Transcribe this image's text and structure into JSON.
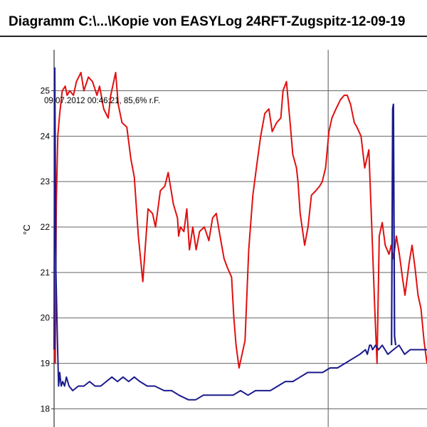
{
  "window": {
    "title": "Diagramm C:\\...\\Kopie von EASYLog 24RFT-Zugspitz-12-09-19"
  },
  "cursor_readout": "09.07.2012 00:46:21, 85,6% r.F.",
  "chart_data": {
    "type": "line",
    "title": "Diagramm C:\\...\\Kopie von EASYLog 24RFT-Zugspitz-12-09-19",
    "ylabel": "°C",
    "xlabel": "",
    "ylim": [
      17.6,
      25.9
    ],
    "xlim": [
      0,
      100
    ],
    "yticks": [
      18,
      19,
      20,
      21,
      22,
      23,
      24,
      25
    ],
    "grid": true,
    "legend": "none",
    "colors": {
      "series_red": "#e01010",
      "series_blue": "#1a1a8c",
      "grid": "#666666"
    },
    "series": [
      {
        "color": "#e01010",
        "x": [
          0,
          0.3,
          0.6,
          1.0,
          1.5,
          2.2,
          3.0,
          3.5,
          4.2,
          5.2,
          6.0,
          7.2,
          8.0,
          9.2,
          10.3,
          11.5,
          12.2,
          13.3,
          14.5,
          15.2,
          16.5,
          17.2,
          18.2,
          19.5,
          20.6,
          21.5,
          22.6,
          23.8,
          25.2,
          26.4,
          27.2,
          28.5,
          29.7,
          30.6,
          32.0,
          33.1,
          33.4,
          33.9,
          34.8,
          35.6,
          36.3,
          37.2,
          38.1,
          39.0,
          40.3,
          41.5,
          42.5,
          43.5,
          44.5,
          45.6,
          46.5,
          47.6,
          48.2,
          48.8,
          49.6,
          50.4,
          51.2,
          52.2,
          53.3,
          54.4,
          55.4,
          56.5,
          57.6,
          58.5,
          59.7,
          60.8,
          61.4,
          62.3,
          63.4,
          64.0,
          65.0,
          65.4,
          66.0,
          67.2,
          68.1,
          69.0,
          70.2,
          71.2,
          71.9,
          72.8,
          73.7,
          74.5,
          75.6,
          76.8,
          77.8,
          78.6,
          79.5,
          80.5,
          81.2,
          82.3,
          83.3,
          84.4,
          85.2,
          86.0,
          86.6,
          87.2,
          88.0,
          88.8,
          89.8,
          90.4,
          91.0,
          91.8,
          92.6,
          93.4,
          94.1,
          95.2,
          96.0,
          96.8,
          97.6,
          98.4,
          99.2,
          100.0
        ],
        "y": [
          19.6,
          19.0,
          22.5,
          24.0,
          24.5,
          25.0,
          25.1,
          24.9,
          25.0,
          24.9,
          25.2,
          25.4,
          25.0,
          25.3,
          25.2,
          24.9,
          25.1,
          24.6,
          24.4,
          24.9,
          25.4,
          24.7,
          24.3,
          24.2,
          23.5,
          23.1,
          21.8,
          20.8,
          22.4,
          22.3,
          22.0,
          22.8,
          22.9,
          23.2,
          22.5,
          22.2,
          21.8,
          22.0,
          21.9,
          22.4,
          21.5,
          22.0,
          21.5,
          21.9,
          22.0,
          21.7,
          22.2,
          22.3,
          21.8,
          21.3,
          21.1,
          20.9,
          20.0,
          19.4,
          18.9,
          19.2,
          19.5,
          21.5,
          22.7,
          23.4,
          24.0,
          24.5,
          24.6,
          24.1,
          24.3,
          24.4,
          25.0,
          25.2,
          24.2,
          23.6,
          23.3,
          23.0,
          22.3,
          21.6,
          22.0,
          22.7,
          22.8,
          22.9,
          23.0,
          23.3,
          24.1,
          24.4,
          24.6,
          24.8,
          24.9,
          24.9,
          24.7,
          24.3,
          24.2,
          24.0,
          23.3,
          23.7,
          22.0,
          20.2,
          19.0,
          21.8,
          22.1,
          21.6,
          21.4,
          21.6,
          21.3,
          21.8,
          21.4,
          20.9,
          20.5,
          21.2,
          21.6,
          21.1,
          20.5,
          20.2,
          19.5,
          19.0
        ]
      },
      {
        "color": "#1a1a8c",
        "x": [
          0,
          0.2,
          0.5,
          0.9,
          1.2,
          1.5,
          1.9,
          2.3,
          2.8,
          3.3,
          4.0,
          5.0,
          6.5,
          8.0,
          9.5,
          11.0,
          12.5,
          14.0,
          15.5,
          17.0,
          18.5,
          20.0,
          21.5,
          23.0,
          25.0,
          27.0,
          29.5,
          31.5,
          33.5,
          36.0,
          38.0,
          40.0,
          42.0,
          44.0,
          46.0,
          48.0,
          50.0,
          52.0,
          54.0,
          56.0,
          58.0,
          60.0,
          62.0,
          64.0,
          66.0,
          68.0,
          70.0,
          72.0,
          74.0,
          76.0,
          78.0,
          80.0,
          82.0,
          83.5,
          84.0,
          84.6,
          85.0,
          85.4,
          86.2,
          87.0,
          88.0,
          89.5,
          91.0,
          92.5,
          94.0,
          95.5,
          97.0,
          98.5,
          100.0
        ],
        "y": [
          19.3,
          25.5,
          21.0,
          19.5,
          18.5,
          18.8,
          18.5,
          18.6,
          18.5,
          18.7,
          18.5,
          18.4,
          18.5,
          18.5,
          18.6,
          18.5,
          18.5,
          18.6,
          18.7,
          18.6,
          18.7,
          18.6,
          18.7,
          18.6,
          18.5,
          18.5,
          18.4,
          18.4,
          18.3,
          18.2,
          18.2,
          18.3,
          18.3,
          18.3,
          18.3,
          18.3,
          18.4,
          18.3,
          18.4,
          18.4,
          18.4,
          18.5,
          18.6,
          18.6,
          18.7,
          18.8,
          18.8,
          18.8,
          18.9,
          18.9,
          19.0,
          19.1,
          19.2,
          19.3,
          19.2,
          19.4,
          19.4,
          19.3,
          19.4,
          19.3,
          19.4,
          19.2,
          19.3,
          19.4,
          19.2,
          19.3,
          19.3,
          19.3,
          19.3
        ]
      }
    ],
    "notes_visible_spike": {
      "series_index": 1,
      "x": [
        90.5,
        90.8,
        91.0,
        91.3,
        91.6
      ],
      "y": [
        19.4,
        24.6,
        24.7,
        19.6,
        19.4
      ]
    }
  }
}
